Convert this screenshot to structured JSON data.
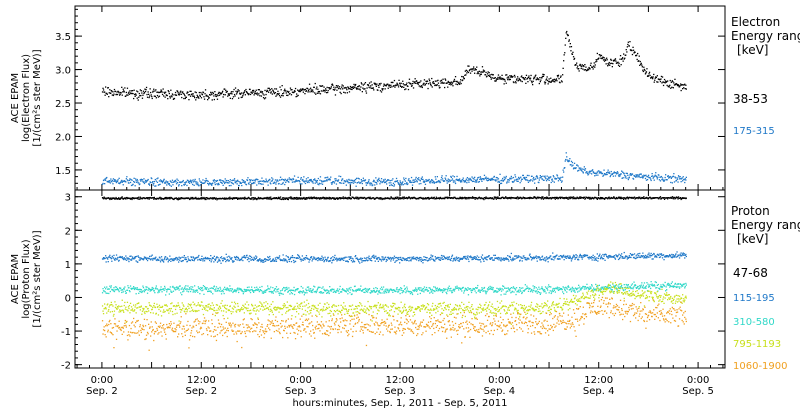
{
  "chart_data": [
    {
      "type": "scatter",
      "ylabel_lines": [
        "ACE EPAM",
        "log(Electron Flux)",
        "[1/(cm²s ster MeV)]"
      ],
      "ylim": [
        1.2,
        3.95
      ],
      "y_ticks": [
        1.5,
        2.0,
        2.5,
        3.0,
        3.5
      ],
      "y_tick_labels": [
        "1.5",
        "2.0",
        "2.5",
        "3.0",
        "3.5"
      ],
      "legend_title_lines": [
        "Electron",
        "Energy ranges",
        "[keV]"
      ],
      "series": [
        {
          "name": "38-53",
          "color": "#000000",
          "x": [
            0,
            6,
            12,
            18,
            24,
            30,
            36,
            42,
            48,
            54,
            60,
            66,
            72,
            78,
            84,
            87,
            88,
            96,
            102,
            108,
            111,
            112,
            113,
            114,
            115,
            117,
            119,
            120,
            121,
            123,
            125,
            126,
            127,
            129,
            131,
            133,
            135,
            137,
            139,
            141
          ],
          "y": [
            2.68,
            2.66,
            2.65,
            2.64,
            2.63,
            2.65,
            2.66,
            2.67,
            2.69,
            2.71,
            2.73,
            2.76,
            2.78,
            2.8,
            2.82,
            2.84,
            3.02,
            2.88,
            2.87,
            2.86,
            2.86,
            3.55,
            3.38,
            3.1,
            3.05,
            3.03,
            3.08,
            3.28,
            3.15,
            3.1,
            3.12,
            3.18,
            3.4,
            3.2,
            2.98,
            2.9,
            2.85,
            2.8,
            2.77,
            2.75
          ]
        },
        {
          "name": "175-315",
          "color": "#1f78c8",
          "x": [
            0,
            12,
            24,
            36,
            48,
            60,
            72,
            84,
            96,
            108,
            111,
            112,
            113,
            115,
            117,
            120,
            125,
            130,
            135,
            141
          ],
          "y": [
            1.34,
            1.33,
            1.32,
            1.33,
            1.35,
            1.34,
            1.33,
            1.36,
            1.37,
            1.38,
            1.38,
            1.72,
            1.6,
            1.52,
            1.48,
            1.46,
            1.44,
            1.41,
            1.39,
            1.37
          ]
        }
      ]
    },
    {
      "type": "scatter",
      "ylabel_lines": [
        "ACE EPAM",
        "log(Proton Flux)",
        "[1/(cm²s ster MeV)]"
      ],
      "ylim": [
        -2.1,
        3.2
      ],
      "y_ticks": [
        -2,
        -1,
        0,
        1,
        2,
        3
      ],
      "y_tick_labels": [
        "-2",
        "-1",
        "0",
        "1",
        "2",
        "3"
      ],
      "legend_title_lines": [
        "Proton",
        "Energy ranges",
        "[keV]"
      ],
      "series": [
        {
          "name": "47-68",
          "color": "#000000",
          "x": [
            0,
            36,
            72,
            108,
            141
          ],
          "y": [
            2.97,
            2.97,
            2.98,
            2.98,
            2.98
          ]
        },
        {
          "name": "115-195",
          "color": "#1f78c8",
          "x": [
            0,
            36,
            72,
            108,
            141
          ],
          "y": [
            1.17,
            1.16,
            1.17,
            1.2,
            1.28
          ]
        },
        {
          "name": "310-580",
          "color": "#30d8c8",
          "x": [
            0,
            36,
            72,
            108,
            120,
            130,
            141
          ],
          "y": [
            0.25,
            0.24,
            0.23,
            0.25,
            0.3,
            0.35,
            0.38
          ]
        },
        {
          "name": "795-1193",
          "color": "#c8e01c",
          "x": [
            0,
            36,
            72,
            108,
            116,
            122,
            126,
            132,
            141
          ],
          "y": [
            -0.3,
            -0.3,
            -0.32,
            -0.3,
            0.0,
            0.3,
            0.2,
            0.05,
            -0.02
          ]
        },
        {
          "name": "1060-1900",
          "color": "#f0a020",
          "x": [
            0,
            12,
            24,
            36,
            48,
            60,
            72,
            84,
            96,
            108,
            114,
            118,
            122,
            126,
            132,
            141
          ],
          "y": [
            -0.9,
            -0.95,
            -0.85,
            -0.9,
            -0.85,
            -0.8,
            -0.8,
            -0.82,
            -0.78,
            -0.75,
            -0.6,
            -0.3,
            -0.2,
            -0.35,
            -0.5,
            -0.55
          ]
        }
      ]
    }
  ],
  "x_axis": {
    "xlim": [
      -6.5,
      150.5
    ],
    "ticks": [
      0,
      12,
      24,
      36,
      48,
      60,
      72,
      84,
      96,
      108,
      120,
      132,
      144
    ],
    "time_labels": [
      "0:00",
      "12:00",
      "0:00",
      "12:00",
      "0:00",
      "12:00",
      "0:00"
    ],
    "date_labels": [
      "Sep. 2",
      "Sep. 2",
      "Sep. 3",
      "Sep. 3",
      "Sep. 4",
      "Sep. 4",
      "Sep. 5"
    ],
    "label": "hours:minutes, Sep.  1, 2011 - Sep.  5, 2011"
  }
}
